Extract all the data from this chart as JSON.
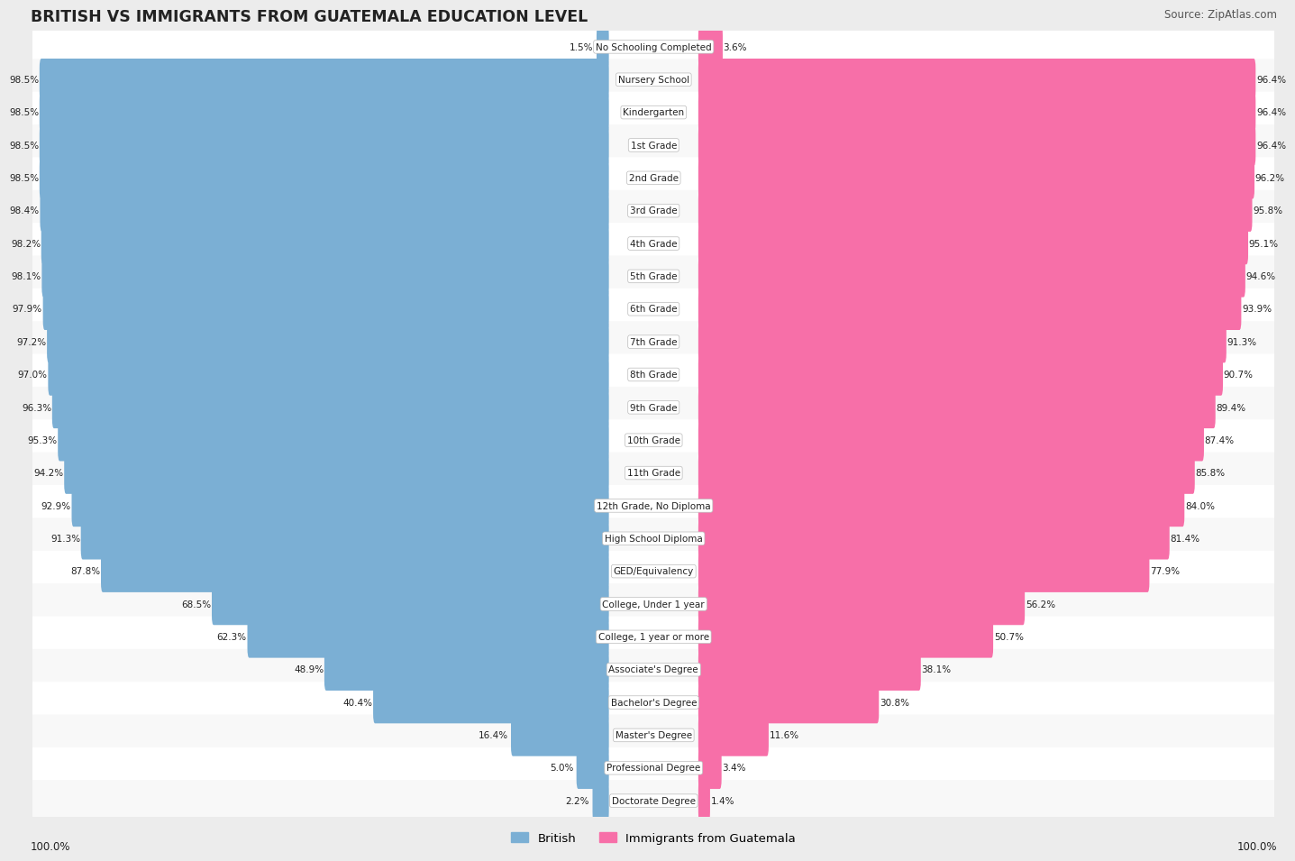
{
  "title": "BRITISH VS IMMIGRANTS FROM GUATEMALA EDUCATION LEVEL",
  "source": "Source: ZipAtlas.com",
  "categories": [
    "No Schooling Completed",
    "Nursery School",
    "Kindergarten",
    "1st Grade",
    "2nd Grade",
    "3rd Grade",
    "4th Grade",
    "5th Grade",
    "6th Grade",
    "7th Grade",
    "8th Grade",
    "9th Grade",
    "10th Grade",
    "11th Grade",
    "12th Grade, No Diploma",
    "High School Diploma",
    "GED/Equivalency",
    "College, Under 1 year",
    "College, 1 year or more",
    "Associate's Degree",
    "Bachelor's Degree",
    "Master's Degree",
    "Professional Degree",
    "Doctorate Degree"
  ],
  "british": [
    1.5,
    98.5,
    98.5,
    98.5,
    98.5,
    98.4,
    98.2,
    98.1,
    97.9,
    97.2,
    97.0,
    96.3,
    95.3,
    94.2,
    92.9,
    91.3,
    87.8,
    68.5,
    62.3,
    48.9,
    40.4,
    16.4,
    5.0,
    2.2
  ],
  "guatemala": [
    3.6,
    96.4,
    96.4,
    96.4,
    96.2,
    95.8,
    95.1,
    94.6,
    93.9,
    91.3,
    90.7,
    89.4,
    87.4,
    85.8,
    84.0,
    81.4,
    77.9,
    56.2,
    50.7,
    38.1,
    30.8,
    11.6,
    3.4,
    1.4
  ],
  "british_color": "#7bafd4",
  "guatemala_color": "#f76fa8",
  "bg_color": "#ececec",
  "row_bg_even": "#f8f8f8",
  "row_bg_odd": "#ffffff"
}
